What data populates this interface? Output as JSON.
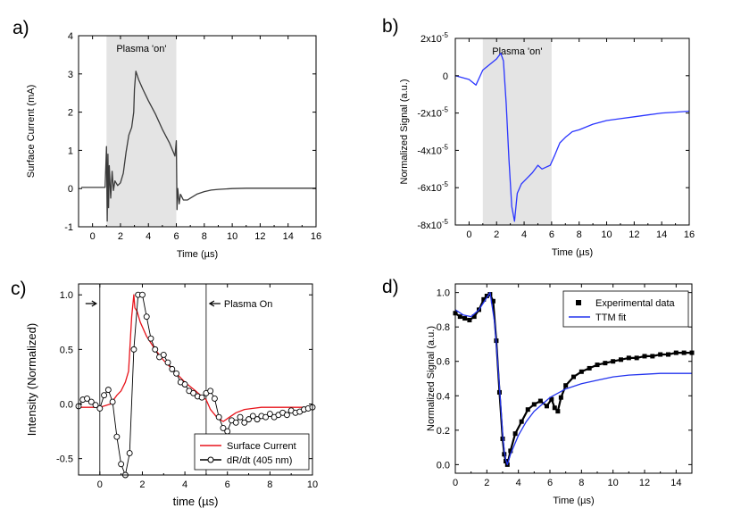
{
  "colors": {
    "axis": "#000000",
    "shade": "#e4e4e4",
    "trace_a": "#3a3a3a",
    "trace_b": "#2a35ff",
    "red": "#e8141b",
    "blue": "#2233ee"
  },
  "chart_data": [
    {
      "id": "a",
      "panel_label": "a)",
      "type": "line",
      "xlabel": "Time (µs)",
      "ylabel": "Surface Current (mA)",
      "xlim": [
        -1,
        16
      ],
      "ylim": [
        -1,
        4
      ],
      "xticks": [
        0,
        2,
        4,
        6,
        8,
        10,
        12,
        14,
        16
      ],
      "yticks": [
        -1,
        0,
        1,
        2,
        3,
        4
      ],
      "shaded_region": {
        "x": [
          1,
          6
        ],
        "label": "Plasma 'on'"
      },
      "series": [
        {
          "x": [
            -0.8,
            0.9,
            1.0,
            1.05,
            1.1,
            1.15,
            1.2,
            1.3,
            1.4,
            1.5,
            1.6,
            1.8,
            2.0,
            2.2,
            2.4,
            2.6,
            2.8,
            2.95,
            3.0,
            3.1,
            3.3,
            3.6,
            4.0,
            4.5,
            5.0,
            5.5,
            5.9,
            6.0,
            6.05,
            6.1,
            6.2,
            6.3,
            6.5,
            6.8,
            7.0,
            7.5,
            8.0,
            8.5,
            9.0,
            10,
            11,
            12,
            13,
            14,
            16
          ],
          "y": [
            0.03,
            0.03,
            1.1,
            -0.85,
            0.9,
            -0.5,
            0.6,
            -0.25,
            0.45,
            -0.05,
            0.2,
            0.08,
            0.15,
            0.4,
            0.95,
            1.4,
            1.6,
            2.0,
            2.6,
            3.07,
            2.85,
            2.6,
            2.3,
            1.95,
            1.55,
            1.2,
            0.85,
            1.25,
            -0.55,
            0.0,
            -0.4,
            -0.15,
            -0.3,
            -0.3,
            -0.25,
            -0.14,
            -0.08,
            -0.04,
            -0.02,
            0.0,
            0.01,
            0.01,
            0.01,
            0.01,
            0.01
          ]
        }
      ]
    },
    {
      "id": "b",
      "panel_label": "b)",
      "type": "line",
      "xlabel": "Time (µs)",
      "ylabel": "Normalized Signal (a.u.)",
      "xlim": [
        -1,
        16
      ],
      "ylim": [
        -8e-05,
        2e-05
      ],
      "xticks": [
        0,
        2,
        4,
        6,
        8,
        10,
        12,
        14,
        16
      ],
      "yticks": [
        {
          "value": 2e-05,
          "mantissa": "2x10",
          "exp": "-5"
        },
        {
          "value": 0,
          "mantissa": "0",
          "exp": ""
        },
        {
          "value": -2e-05,
          "mantissa": "-2x10",
          "exp": "-5"
        },
        {
          "value": -4e-05,
          "mantissa": "-4x10",
          "exp": "-5"
        },
        {
          "value": -6e-05,
          "mantissa": "-6x10",
          "exp": "-5"
        },
        {
          "value": -8e-05,
          "mantissa": "-8x10",
          "exp": "-5"
        }
      ],
      "shaded_region": {
        "x": [
          1,
          6
        ],
        "label": "Plasma 'on'"
      },
      "series": [
        {
          "x": [
            -1,
            0,
            0.5,
            1.0,
            1.5,
            2.0,
            2.3,
            2.5,
            2.7,
            2.9,
            3.1,
            3.3,
            3.5,
            3.8,
            4.2,
            4.6,
            5.0,
            5.3,
            5.6,
            5.9,
            6.2,
            6.6,
            7.0,
            7.5,
            8,
            9,
            10,
            11,
            12,
            13,
            14,
            15,
            16
          ],
          "y": [
            0,
            -2e-06,
            -5e-06,
            3e-06,
            6e-06,
            9e-06,
            1.2e-05,
            8e-06,
            -1.5e-05,
            -4.5e-05,
            -7e-05,
            -7.8e-05,
            -6.3e-05,
            -5.8e-05,
            -5.5e-05,
            -5.2e-05,
            -4.8e-05,
            -5e-05,
            -4.9e-05,
            -4.8e-05,
            -4.3e-05,
            -3.6e-05,
            -3.3e-05,
            -3e-05,
            -2.9e-05,
            -2.6e-05,
            -2.4e-05,
            -2.3e-05,
            -2.2e-05,
            -2.1e-05,
            -2e-05,
            -1.95e-05,
            -1.9e-05
          ]
        }
      ]
    },
    {
      "id": "c",
      "panel_label": "c)",
      "type": "line",
      "xlabel": "time (µs)",
      "ylabel": "Intensity (Normalized)",
      "xlim": [
        -1,
        10
      ],
      "ylim": [
        -0.65,
        1.1
      ],
      "xticks": [
        0,
        2,
        4,
        6,
        8,
        10
      ],
      "yticks": [
        -0.5,
        0.0,
        0.5,
        1.0
      ],
      "ytick_labels": [
        "-0.5",
        "0.0",
        "0.5",
        "1.0"
      ],
      "vlines": [
        0,
        5
      ],
      "annotation": "Plasma On",
      "legend": {
        "position": "bottom-right",
        "entries": [
          "Surface Current",
          "dR/dt (405 nm)"
        ]
      },
      "series": [
        {
          "name": "Surface Current",
          "x": [
            -1,
            0,
            0.5,
            0.8,
            1.0,
            1.2,
            1.35,
            1.5,
            1.6,
            1.65,
            1.75,
            1.9,
            2.2,
            2.6,
            3.0,
            3.5,
            4.0,
            4.5,
            4.8,
            5.0,
            5.2,
            5.5,
            5.8,
            6.1,
            6.4,
            6.8,
            7.2,
            7.6,
            8,
            9,
            10
          ],
          "y": [
            -0.03,
            -0.03,
            0.0,
            0.08,
            0.12,
            0.2,
            0.3,
            0.8,
            1.0,
            0.88,
            0.85,
            0.75,
            0.62,
            0.5,
            0.4,
            0.3,
            0.2,
            0.12,
            0.07,
            0.04,
            -0.05,
            -0.12,
            -0.16,
            -0.12,
            -0.08,
            -0.05,
            -0.04,
            -0.03,
            -0.03,
            -0.03,
            -0.03
          ]
        },
        {
          "name": "dR/dt (405 nm)",
          "x": [
            -1,
            -0.8,
            -0.6,
            -0.4,
            -0.2,
            0,
            0.2,
            0.4,
            0.6,
            0.8,
            1.0,
            1.2,
            1.4,
            1.6,
            1.8,
            2.0,
            2.2,
            2.4,
            2.6,
            2.8,
            3.0,
            3.2,
            3.4,
            3.6,
            3.8,
            4.0,
            4.2,
            4.4,
            4.6,
            4.8,
            5.0,
            5.2,
            5.4,
            5.6,
            5.8,
            6.0,
            6.2,
            6.4,
            6.6,
            6.8,
            7.0,
            7.2,
            7.4,
            7.6,
            7.8,
            8.0,
            8.2,
            8.4,
            8.6,
            8.8,
            9.0,
            9.2,
            9.4,
            9.6,
            9.8,
            10.0
          ],
          "y": [
            -0.02,
            0.04,
            0.05,
            0.02,
            -0.01,
            -0.04,
            0.08,
            0.13,
            0.02,
            -0.3,
            -0.55,
            -0.65,
            -0.45,
            0.5,
            1.0,
            1.0,
            0.8,
            0.6,
            0.5,
            0.43,
            0.45,
            0.38,
            0.32,
            0.28,
            0.2,
            0.18,
            0.12,
            0.1,
            0.07,
            0.06,
            0.1,
            0.12,
            0.05,
            -0.12,
            -0.22,
            -0.25,
            -0.15,
            -0.17,
            -0.12,
            -0.17,
            -0.14,
            -0.11,
            -0.14,
            -0.11,
            -0.12,
            -0.09,
            -0.12,
            -0.1,
            -0.08,
            -0.1,
            -0.06,
            -0.08,
            -0.07,
            -0.05,
            -0.04,
            -0.03
          ]
        }
      ]
    },
    {
      "id": "d",
      "panel_label": "d)",
      "type": "line",
      "xlabel": "Time (µs)",
      "ylabel": "Normalized Signal (a.u.)",
      "xlim": [
        0,
        15
      ],
      "ylim": [
        -0.05,
        1.05
      ],
      "xticks": [
        0,
        2,
        4,
        6,
        8,
        10,
        12,
        14
      ],
      "yticks": [
        0.0,
        0.2,
        0.4,
        0.6,
        0.8,
        1.0
      ],
      "ytick_labels": [
        "0.0",
        "0.2",
        "0.4",
        "0.6",
        "0.8",
        "1.0"
      ],
      "legend": {
        "position": "top-right",
        "entries": [
          "Experimental data",
          "TTM fit"
        ]
      },
      "series": [
        {
          "name": "Experimental data",
          "x": [
            0,
            0.3,
            0.6,
            0.9,
            1.2,
            1.5,
            1.8,
            2.0,
            2.2,
            2.4,
            2.6,
            2.8,
            3.0,
            3.1,
            3.2,
            3.3,
            3.5,
            3.8,
            4.2,
            4.6,
            5.0,
            5.4,
            5.8,
            6.1,
            6.3,
            6.5,
            6.7,
            7.0,
            7.5,
            8,
            8.5,
            9,
            9.5,
            10,
            10.5,
            11,
            11.5,
            12,
            12.5,
            13,
            13.5,
            14,
            14.5,
            15
          ],
          "y": [
            0.88,
            0.86,
            0.85,
            0.84,
            0.86,
            0.9,
            0.96,
            0.98,
            0.99,
            0.95,
            0.72,
            0.42,
            0.15,
            0.06,
            0.02,
            0.0,
            0.08,
            0.18,
            0.25,
            0.32,
            0.35,
            0.37,
            0.34,
            0.38,
            0.33,
            0.31,
            0.39,
            0.46,
            0.51,
            0.54,
            0.56,
            0.58,
            0.59,
            0.6,
            0.61,
            0.62,
            0.62,
            0.63,
            0.63,
            0.64,
            0.64,
            0.65,
            0.65,
            0.65
          ]
        },
        {
          "name": "TTM fit",
          "x": [
            0,
            0.5,
            1.0,
            1.5,
            2.0,
            2.2,
            2.5,
            2.8,
            3.0,
            3.1,
            3.2,
            3.3,
            3.5,
            4.0,
            4.5,
            5.0,
            6.0,
            7.0,
            8.0,
            9.0,
            10,
            11,
            12,
            13,
            14,
            15
          ],
          "y": [
            0.9,
            0.87,
            0.86,
            0.9,
            0.97,
            1.0,
            0.82,
            0.45,
            0.18,
            0.08,
            0.03,
            0.0,
            0.06,
            0.17,
            0.25,
            0.31,
            0.39,
            0.44,
            0.47,
            0.49,
            0.51,
            0.52,
            0.525,
            0.53,
            0.53,
            0.53
          ]
        }
      ]
    }
  ]
}
